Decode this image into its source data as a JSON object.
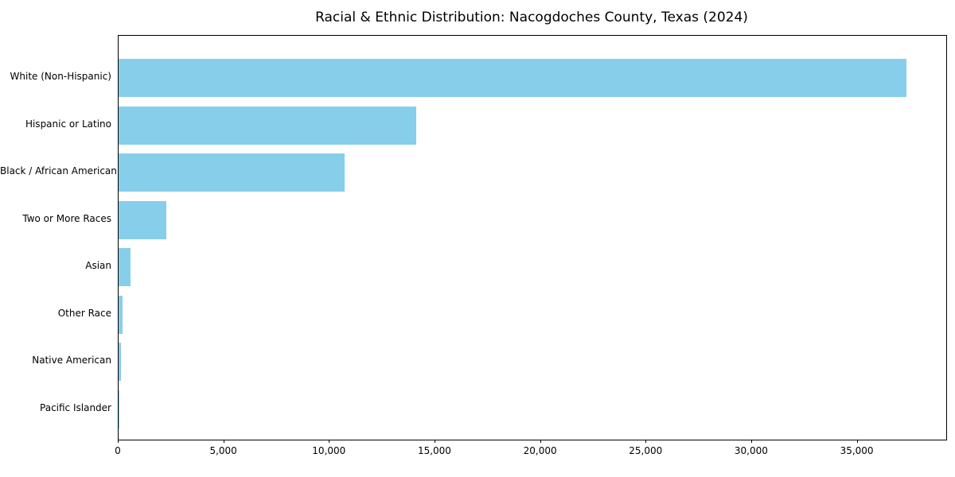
{
  "chart_data": {
    "type": "bar",
    "orientation": "horizontal",
    "title": "Racial & Ethnic Distribution: Nacogdoches County, Texas (2024)",
    "categories": [
      "White (Non-Hispanic)",
      "Hispanic or Latino",
      "Black / African American",
      "Two or More Races",
      "Asian",
      "Other Race",
      "Native American",
      "Pacific Islander"
    ],
    "values": [
      37300,
      14100,
      10700,
      2250,
      550,
      200,
      100,
      40
    ],
    "bar_color": "#87CEEB",
    "xlabel": "",
    "ylabel": "",
    "xlim": [
      0,
      39200
    ],
    "x_ticks": [
      0,
      5000,
      10000,
      15000,
      20000,
      25000,
      30000,
      35000
    ],
    "x_tick_labels": [
      "0",
      "5,000",
      "10,000",
      "15,000",
      "20,000",
      "25,000",
      "30,000",
      "35,000"
    ],
    "grid": false,
    "legend": false
  }
}
